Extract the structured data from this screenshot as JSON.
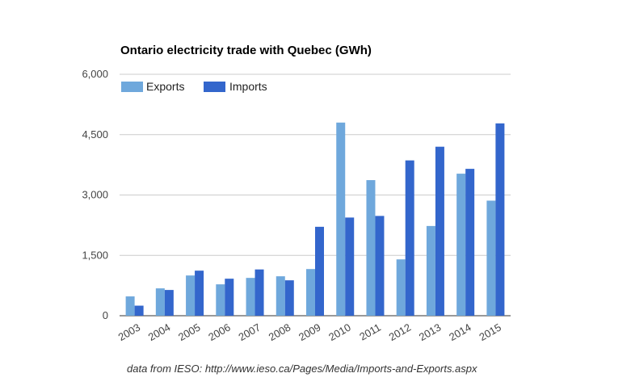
{
  "chart_data": {
    "type": "bar",
    "title": "Ontario electricity trade with Quebec (GWh)",
    "xlabel": "",
    "ylabel": "",
    "categories": [
      "2003",
      "2004",
      "2005",
      "2006",
      "2007",
      "2008",
      "2009",
      "2010",
      "2011",
      "2012",
      "2013",
      "2014",
      "2015"
    ],
    "series": [
      {
        "name": "Exports",
        "color": "#6fa8dc",
        "values": [
          480,
          680,
          1000,
          780,
          940,
          980,
          1160,
          4800,
          3370,
          1400,
          2230,
          3530,
          2860
        ]
      },
      {
        "name": "Imports",
        "color": "#3366cc",
        "values": [
          250,
          640,
          1120,
          920,
          1150,
          880,
          2210,
          2440,
          2480,
          3860,
          4200,
          3650,
          4780
        ]
      }
    ],
    "ylim": [
      0,
      6000
    ],
    "yticks": [
      0,
      1500,
      3000,
      4500,
      6000
    ],
    "ytick_labels": [
      "0",
      "1,500",
      "3,000",
      "4,500",
      "6,000"
    ],
    "grid": true,
    "legend_position": "top-left",
    "source_note": "data from IESO: http://www.ieso.ca/Pages/Media/Imports-and-Exports.aspx"
  }
}
